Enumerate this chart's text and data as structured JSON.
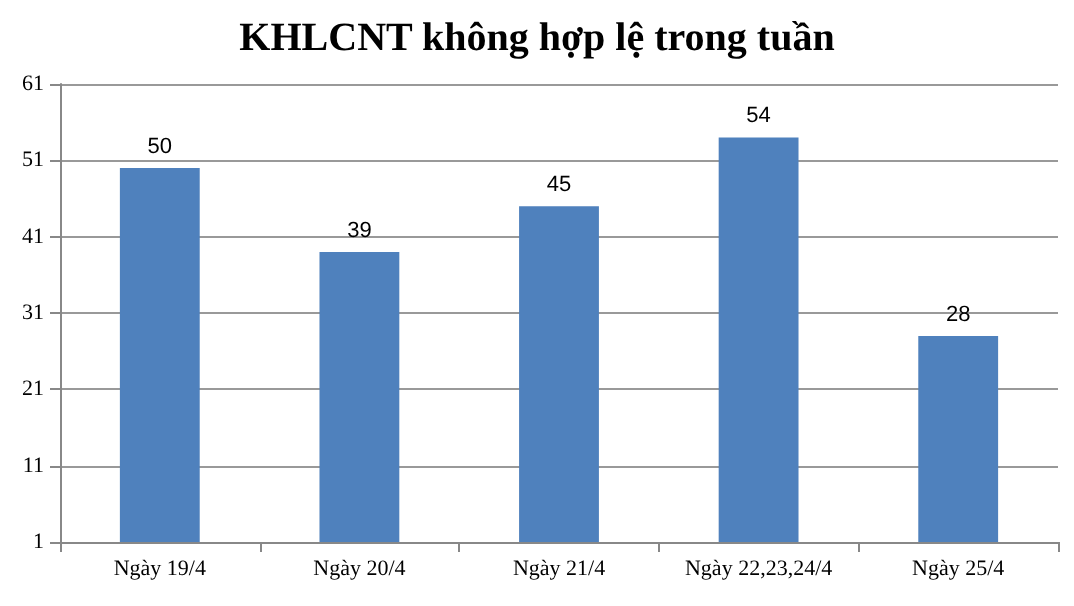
{
  "chart_data": {
    "type": "bar",
    "title": "KHLCNT không hợp lệ trong tuần",
    "categories": [
      "Ngày 19/4",
      "Ngày 20/4",
      "Ngày 21/4",
      "Ngày 22,23,24/4",
      "Ngày 25/4"
    ],
    "values": [
      50,
      39,
      45,
      54,
      28
    ],
    "color": "#4f81bd",
    "ylim": [
      1,
      61
    ],
    "yticks": [
      1,
      11,
      21,
      31,
      41,
      51,
      61
    ],
    "grid": "y",
    "data_labels": true
  }
}
